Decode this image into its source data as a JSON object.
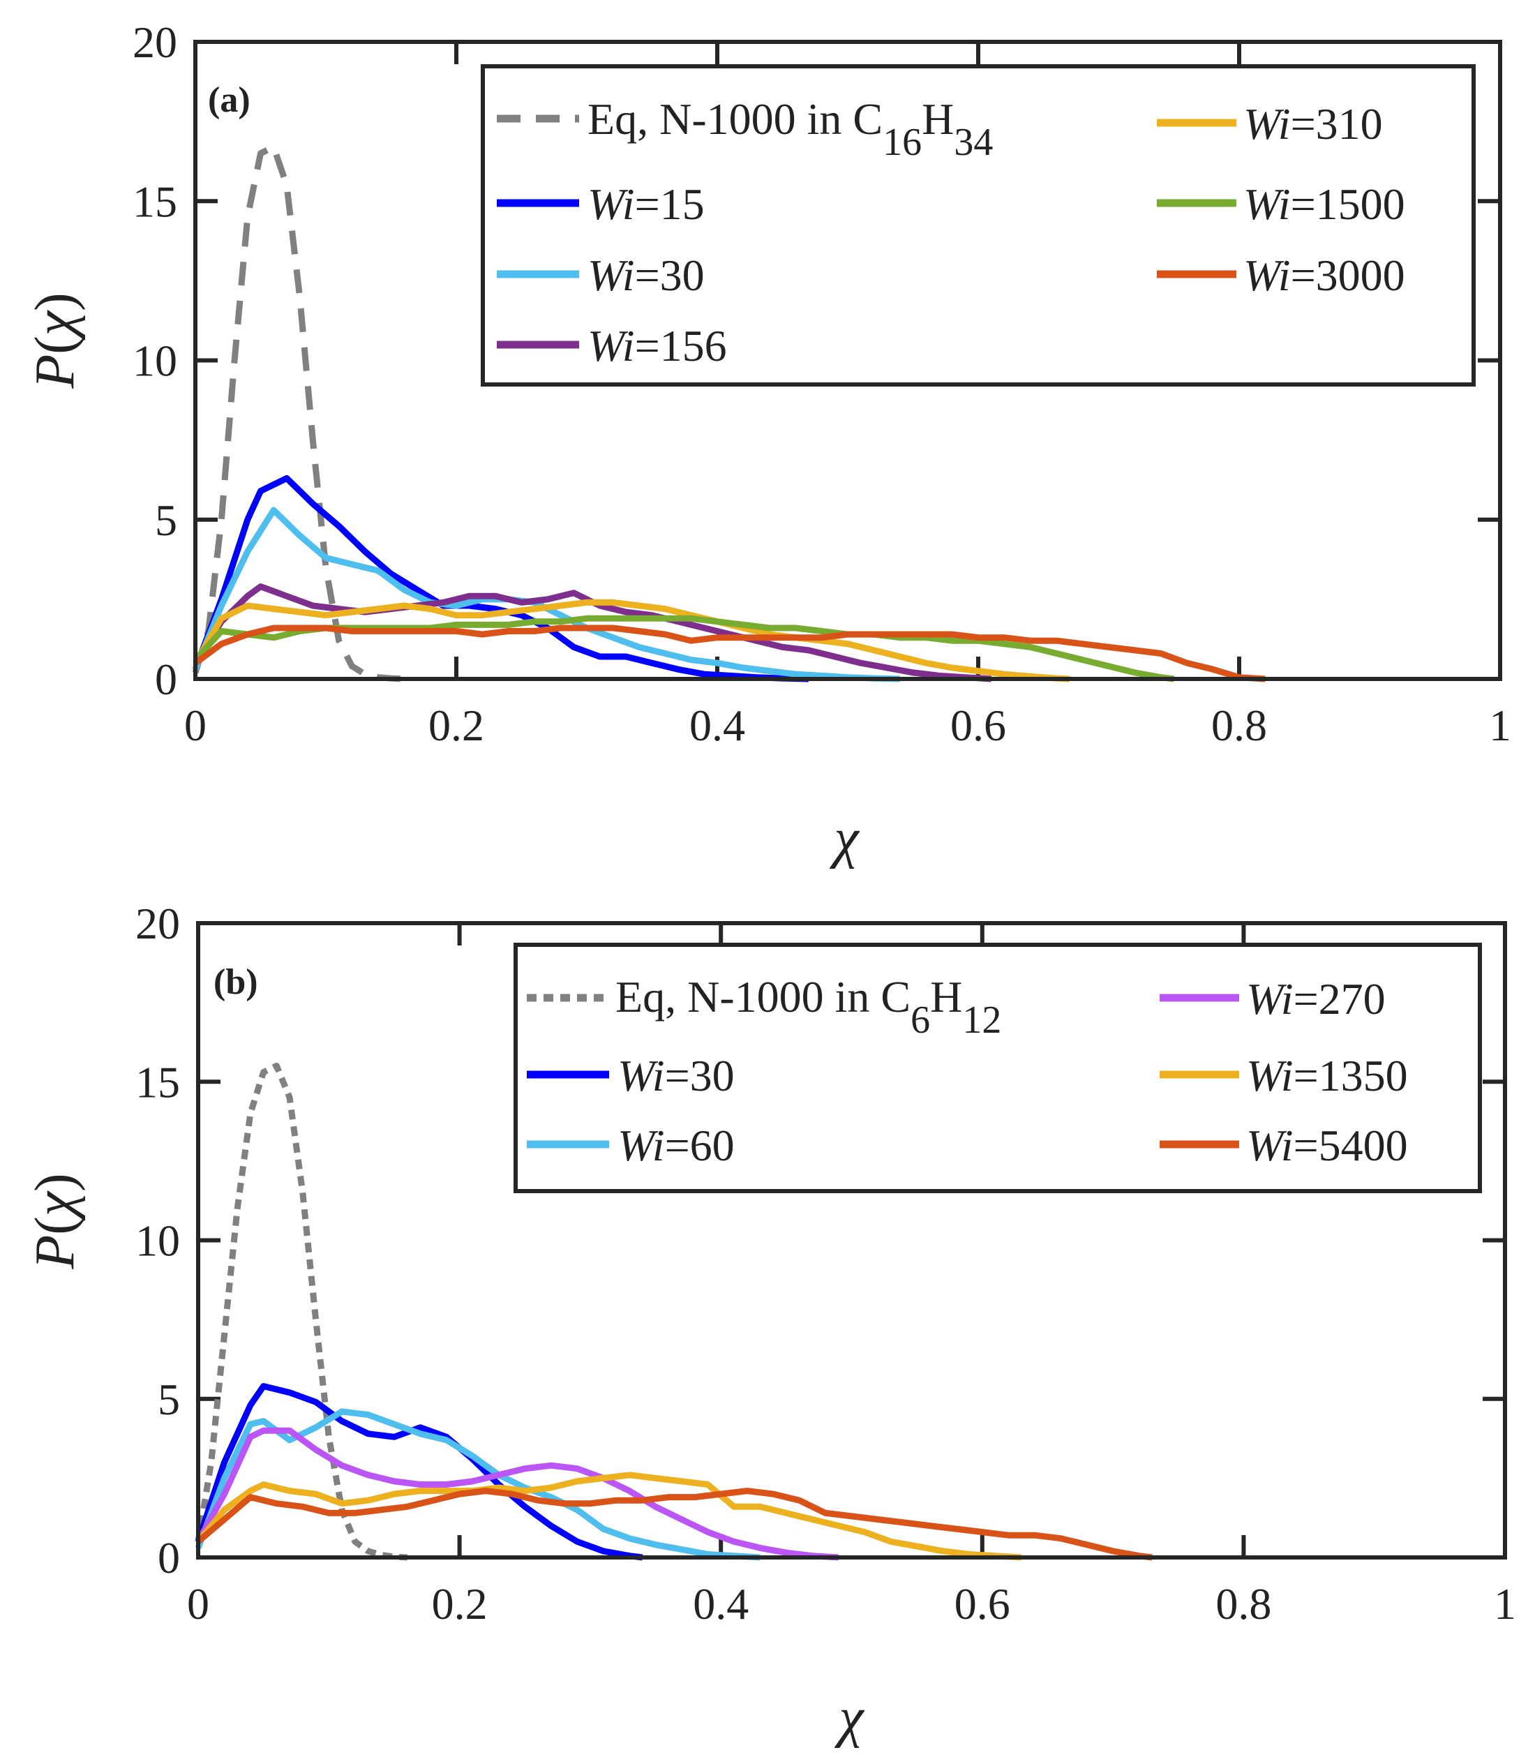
{
  "chart_data": [
    {
      "type": "line",
      "panel_label": "(a)",
      "xlabel_symbol": "χ",
      "ylabel_symbol": "P",
      "ylabel_var": "χ",
      "xlim": [
        0,
        1
      ],
      "ylim": [
        0,
        20
      ],
      "x_tick_labels": [
        "0",
        "0.2",
        "0.4",
        "0.6",
        "0.8",
        "1"
      ],
      "x_tick_values": [
        0,
        0.2,
        0.4,
        0.6,
        0.8,
        1
      ],
      "y_tick_labels": [
        "0",
        "5",
        "10",
        "15",
        "20"
      ],
      "y_tick_values": [
        0,
        5,
        10,
        15,
        20
      ],
      "legend_position": "top-right",
      "series": [
        {
          "name": "Eq, N-1000 in C16H34",
          "legend": {
            "text": "Eq, N-1000 in C",
            "sub1": "16",
            "mid": "H",
            "sub2": "34"
          },
          "color": "#808080",
          "style": "dashed",
          "x": [
            0,
            0.01,
            0.02,
            0.03,
            0.04,
            0.05,
            0.06,
            0.07,
            0.08,
            0.09,
            0.1,
            0.11,
            0.12,
            0.13,
            0.14,
            0.15,
            0.16
          ],
          "y": [
            0.2,
            1.5,
            5.0,
            10.0,
            14.5,
            16.5,
            16.7,
            15.5,
            12.0,
            7.5,
            3.5,
            1.2,
            0.4,
            0.15,
            0.05,
            0.02,
            0
          ]
        },
        {
          "name": "Wi=15",
          "legend": {
            "prefix": "Wi",
            "text": "=15"
          },
          "color": "#0000ff",
          "style": "solid",
          "x": [
            0,
            0.02,
            0.04,
            0.05,
            0.07,
            0.09,
            0.11,
            0.13,
            0.15,
            0.17,
            0.19,
            0.21,
            0.23,
            0.25,
            0.27,
            0.29,
            0.31,
            0.33,
            0.35,
            0.37,
            0.39,
            0.41,
            0.43,
            0.45,
            0.47
          ],
          "y": [
            0.3,
            2.5,
            5.0,
            5.9,
            6.3,
            5.5,
            4.8,
            4.0,
            3.3,
            2.8,
            2.3,
            2.3,
            2.2,
            2.0,
            1.6,
            1.0,
            0.7,
            0.7,
            0.5,
            0.3,
            0.15,
            0.1,
            0.05,
            0.02,
            0
          ]
        },
        {
          "name": "Wi=30",
          "legend": {
            "prefix": "Wi",
            "text": "=30"
          },
          "color": "#4dbeee",
          "style": "solid",
          "x": [
            0,
            0.02,
            0.04,
            0.06,
            0.08,
            0.1,
            0.12,
            0.14,
            0.16,
            0.18,
            0.2,
            0.22,
            0.24,
            0.26,
            0.28,
            0.3,
            0.32,
            0.34,
            0.36,
            0.38,
            0.4,
            0.42,
            0.44,
            0.46,
            0.48,
            0.5,
            0.52,
            0.54
          ],
          "y": [
            0.3,
            2.3,
            4.0,
            5.3,
            4.5,
            3.8,
            3.6,
            3.4,
            2.8,
            2.4,
            2.3,
            2.5,
            2.5,
            2.4,
            2.0,
            1.6,
            1.3,
            1.0,
            0.8,
            0.6,
            0.5,
            0.35,
            0.25,
            0.15,
            0.1,
            0.05,
            0.02,
            0
          ]
        },
        {
          "name": "Wi=156",
          "legend": {
            "prefix": "Wi",
            "text": "=156"
          },
          "color": "#7e2f8e",
          "style": "solid",
          "x": [
            0,
            0.02,
            0.04,
            0.05,
            0.07,
            0.09,
            0.11,
            0.13,
            0.15,
            0.17,
            0.19,
            0.21,
            0.23,
            0.25,
            0.27,
            0.29,
            0.31,
            0.33,
            0.35,
            0.37,
            0.39,
            0.41,
            0.43,
            0.45,
            0.47,
            0.49,
            0.51,
            0.53,
            0.55,
            0.57,
            0.59,
            0.61
          ],
          "y": [
            0.5,
            1.8,
            2.6,
            2.9,
            2.6,
            2.3,
            2.2,
            2.1,
            2.2,
            2.3,
            2.4,
            2.6,
            2.6,
            2.4,
            2.5,
            2.7,
            2.3,
            2.1,
            2.0,
            1.8,
            1.6,
            1.4,
            1.2,
            1.0,
            0.9,
            0.7,
            0.5,
            0.35,
            0.2,
            0.1,
            0.05,
            0
          ]
        },
        {
          "name": "Wi=310",
          "legend": {
            "prefix": "Wi",
            "text": "=310"
          },
          "color": "#edb120",
          "style": "solid",
          "x": [
            0,
            0.02,
            0.04,
            0.06,
            0.08,
            0.1,
            0.12,
            0.14,
            0.16,
            0.18,
            0.2,
            0.22,
            0.24,
            0.26,
            0.28,
            0.3,
            0.32,
            0.34,
            0.36,
            0.38,
            0.4,
            0.42,
            0.44,
            0.46,
            0.48,
            0.5,
            0.52,
            0.54,
            0.56,
            0.58,
            0.6,
            0.62,
            0.64,
            0.66,
            0.67
          ],
          "y": [
            0.5,
            1.9,
            2.3,
            2.2,
            2.1,
            2.0,
            2.1,
            2.2,
            2.3,
            2.2,
            2.0,
            2.0,
            2.1,
            2.2,
            2.3,
            2.4,
            2.4,
            2.3,
            2.2,
            2.0,
            1.8,
            1.6,
            1.4,
            1.3,
            1.2,
            1.1,
            0.9,
            0.7,
            0.5,
            0.35,
            0.25,
            0.15,
            0.08,
            0.02,
            0
          ]
        },
        {
          "name": "Wi=1500",
          "legend": {
            "prefix": "Wi",
            "text": "=1500"
          },
          "color": "#77ac30",
          "style": "solid",
          "x": [
            0,
            0.02,
            0.04,
            0.06,
            0.08,
            0.1,
            0.12,
            0.14,
            0.16,
            0.18,
            0.2,
            0.22,
            0.24,
            0.26,
            0.28,
            0.3,
            0.32,
            0.34,
            0.36,
            0.38,
            0.4,
            0.42,
            0.44,
            0.46,
            0.48,
            0.5,
            0.52,
            0.54,
            0.56,
            0.58,
            0.6,
            0.62,
            0.64,
            0.66,
            0.68,
            0.7,
            0.72,
            0.74,
            0.75
          ],
          "y": [
            0.6,
            1.5,
            1.4,
            1.3,
            1.5,
            1.6,
            1.6,
            1.6,
            1.6,
            1.6,
            1.7,
            1.7,
            1.7,
            1.8,
            1.8,
            1.9,
            1.9,
            1.9,
            1.9,
            1.9,
            1.8,
            1.7,
            1.6,
            1.6,
            1.5,
            1.4,
            1.4,
            1.3,
            1.3,
            1.2,
            1.2,
            1.1,
            1.0,
            0.8,
            0.6,
            0.4,
            0.2,
            0.05,
            0
          ]
        },
        {
          "name": "Wi=3000",
          "legend": {
            "prefix": "Wi",
            "text": "=3000"
          },
          "color": "#d95319",
          "style": "solid",
          "x": [
            0,
            0.02,
            0.04,
            0.06,
            0.08,
            0.1,
            0.12,
            0.14,
            0.16,
            0.18,
            0.2,
            0.22,
            0.24,
            0.26,
            0.28,
            0.3,
            0.32,
            0.34,
            0.36,
            0.38,
            0.4,
            0.42,
            0.44,
            0.46,
            0.48,
            0.5,
            0.52,
            0.54,
            0.56,
            0.58,
            0.6,
            0.62,
            0.64,
            0.66,
            0.68,
            0.7,
            0.72,
            0.74,
            0.76,
            0.78,
            0.8,
            0.82
          ],
          "y": [
            0.5,
            1.1,
            1.4,
            1.6,
            1.6,
            1.6,
            1.5,
            1.5,
            1.5,
            1.5,
            1.5,
            1.4,
            1.5,
            1.5,
            1.6,
            1.6,
            1.6,
            1.5,
            1.4,
            1.2,
            1.3,
            1.3,
            1.3,
            1.3,
            1.3,
            1.4,
            1.4,
            1.4,
            1.4,
            1.4,
            1.3,
            1.3,
            1.2,
            1.2,
            1.1,
            1.0,
            0.9,
            0.8,
            0.5,
            0.3,
            0.05,
            0
          ]
        }
      ]
    },
    {
      "type": "line",
      "panel_label": "(b)",
      "xlabel_symbol": "χ",
      "ylabel_symbol": "P",
      "ylabel_var": "χ",
      "xlim": [
        0,
        1
      ],
      "ylim": [
        0,
        20
      ],
      "x_tick_labels": [
        "0",
        "0.2",
        "0.4",
        "0.6",
        "0.8",
        "1"
      ],
      "x_tick_values": [
        0,
        0.2,
        0.4,
        0.6,
        0.8,
        1
      ],
      "y_tick_labels": [
        "0",
        "5",
        "10",
        "15",
        "20"
      ],
      "y_tick_values": [
        0,
        5,
        10,
        15,
        20
      ],
      "legend_position": "top-right",
      "series": [
        {
          "name": "Eq, N-1000 in C6H12",
          "legend": {
            "text": "Eq, N-1000 in C",
            "sub1": "6",
            "mid": "H",
            "sub2": "12"
          },
          "color": "#808080",
          "style": "dotted",
          "x": [
            0,
            0.01,
            0.02,
            0.03,
            0.04,
            0.05,
            0.06,
            0.07,
            0.08,
            0.09,
            0.1,
            0.11,
            0.12,
            0.13,
            0.14,
            0.15,
            0.16
          ],
          "y": [
            0.5,
            3.0,
            7.0,
            11.0,
            14.0,
            15.3,
            15.5,
            14.5,
            11.5,
            7.5,
            3.8,
            1.5,
            0.5,
            0.2,
            0.08,
            0.02,
            0
          ]
        },
        {
          "name": "Wi=30",
          "legend": {
            "prefix": "Wi",
            "text": "=30"
          },
          "color": "#0000ff",
          "style": "solid",
          "x": [
            0,
            0.02,
            0.04,
            0.05,
            0.07,
            0.09,
            0.11,
            0.13,
            0.15,
            0.17,
            0.19,
            0.21,
            0.23,
            0.25,
            0.27,
            0.29,
            0.31,
            0.33,
            0.34
          ],
          "y": [
            0.5,
            3.0,
            4.8,
            5.4,
            5.2,
            4.9,
            4.3,
            3.9,
            3.8,
            4.1,
            3.8,
            3.1,
            2.3,
            1.6,
            1.0,
            0.5,
            0.2,
            0.05,
            0
          ]
        },
        {
          "name": "Wi=60",
          "legend": {
            "prefix": "Wi",
            "text": "=60"
          },
          "color": "#4dbeee",
          "style": "solid",
          "x": [
            0,
            0.02,
            0.04,
            0.05,
            0.07,
            0.09,
            0.11,
            0.13,
            0.15,
            0.17,
            0.19,
            0.21,
            0.23,
            0.25,
            0.27,
            0.29,
            0.31,
            0.33,
            0.35,
            0.37,
            0.39,
            0.41,
            0.43
          ],
          "y": [
            0.3,
            2.5,
            4.2,
            4.3,
            3.7,
            4.1,
            4.6,
            4.5,
            4.2,
            3.9,
            3.7,
            3.2,
            2.6,
            2.2,
            1.9,
            1.5,
            0.9,
            0.6,
            0.4,
            0.25,
            0.1,
            0.05,
            0
          ]
        },
        {
          "name": "Wi=270",
          "legend": {
            "prefix": "Wi",
            "text": "=270"
          },
          "color": "#bb55f5",
          "style": "solid",
          "x": [
            0,
            0.02,
            0.04,
            0.05,
            0.07,
            0.09,
            0.11,
            0.13,
            0.15,
            0.17,
            0.19,
            0.21,
            0.23,
            0.25,
            0.27,
            0.29,
            0.31,
            0.33,
            0.35,
            0.37,
            0.39,
            0.41,
            0.43,
            0.45,
            0.47,
            0.49
          ],
          "y": [
            0.5,
            2.0,
            3.8,
            4.0,
            4.0,
            3.4,
            2.9,
            2.6,
            2.4,
            2.3,
            2.3,
            2.4,
            2.6,
            2.8,
            2.9,
            2.8,
            2.5,
            2.1,
            1.6,
            1.2,
            0.8,
            0.5,
            0.3,
            0.15,
            0.05,
            0
          ]
        },
        {
          "name": "Wi=1350",
          "legend": {
            "prefix": "Wi",
            "text": "=1350"
          },
          "color": "#edb120",
          "style": "solid",
          "x": [
            0,
            0.02,
            0.04,
            0.05,
            0.07,
            0.09,
            0.11,
            0.13,
            0.15,
            0.17,
            0.19,
            0.21,
            0.23,
            0.25,
            0.27,
            0.29,
            0.31,
            0.33,
            0.35,
            0.37,
            0.39,
            0.41,
            0.43,
            0.45,
            0.47,
            0.49,
            0.51,
            0.53,
            0.55,
            0.57,
            0.59,
            0.61,
            0.63
          ],
          "y": [
            0.5,
            1.5,
            2.1,
            2.3,
            2.1,
            2.0,
            1.7,
            1.8,
            2.0,
            2.1,
            2.1,
            2.1,
            2.2,
            2.1,
            2.2,
            2.4,
            2.5,
            2.6,
            2.5,
            2.4,
            2.3,
            1.6,
            1.6,
            1.4,
            1.2,
            1.0,
            0.8,
            0.5,
            0.35,
            0.2,
            0.1,
            0.05,
            0
          ]
        },
        {
          "name": "Wi=5400",
          "legend": {
            "prefix": "Wi",
            "text": "=5400"
          },
          "color": "#d95319",
          "style": "solid",
          "x": [
            0,
            0.02,
            0.04,
            0.06,
            0.08,
            0.1,
            0.12,
            0.14,
            0.16,
            0.18,
            0.2,
            0.22,
            0.24,
            0.26,
            0.28,
            0.3,
            0.32,
            0.34,
            0.36,
            0.38,
            0.4,
            0.42,
            0.44,
            0.46,
            0.48,
            0.5,
            0.52,
            0.54,
            0.56,
            0.58,
            0.6,
            0.62,
            0.64,
            0.66,
            0.68,
            0.7,
            0.72,
            0.73
          ],
          "y": [
            0.5,
            1.2,
            1.9,
            1.7,
            1.6,
            1.4,
            1.4,
            1.5,
            1.6,
            1.8,
            2.0,
            2.1,
            2.0,
            1.8,
            1.7,
            1.7,
            1.8,
            1.8,
            1.9,
            1.9,
            2.0,
            2.1,
            2.0,
            1.8,
            1.4,
            1.3,
            1.2,
            1.1,
            1.0,
            0.9,
            0.8,
            0.7,
            0.7,
            0.6,
            0.4,
            0.2,
            0.05,
            0
          ]
        }
      ]
    }
  ]
}
